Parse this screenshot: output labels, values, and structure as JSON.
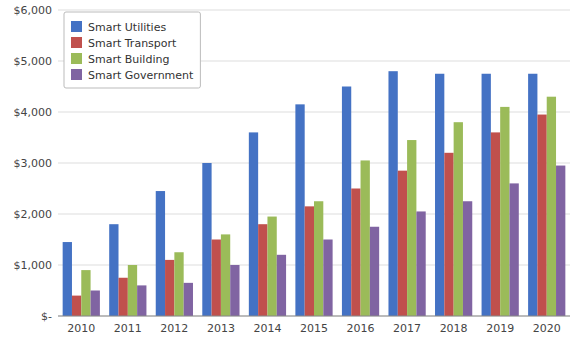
{
  "chart_data": {
    "type": "bar",
    "categories": [
      "2010",
      "2011",
      "2012",
      "2013",
      "2014",
      "2015",
      "2016",
      "2017",
      "2018",
      "2019",
      "2020"
    ],
    "series": [
      {
        "name": "Smart Utilities",
        "color": "#4472C4",
        "values": [
          1450,
          1800,
          2450,
          3000,
          3600,
          4150,
          4500,
          4800,
          4750,
          4750,
          4750
        ]
      },
      {
        "name": "Smart Transport",
        "color": "#C0504D",
        "values": [
          400,
          750,
          1100,
          1500,
          1800,
          2150,
          2500,
          2850,
          3200,
          3600,
          3950
        ]
      },
      {
        "name": "Smart Building",
        "color": "#9BBB59",
        "values": [
          900,
          1000,
          1250,
          1600,
          1950,
          2250,
          3050,
          3450,
          3800,
          4100,
          4300
        ]
      },
      {
        "name": "Smart Government",
        "color": "#8064A2",
        "values": [
          500,
          600,
          650,
          1000,
          1200,
          1500,
          1750,
          2050,
          2250,
          2600,
          2950
        ]
      }
    ],
    "ylim": [
      0,
      6000
    ],
    "yticks": [
      {
        "value": 0,
        "label": "$-"
      },
      {
        "value": 1000,
        "label": "$1,000"
      },
      {
        "value": 2000,
        "label": "$2,000"
      },
      {
        "value": 3000,
        "label": "$3,000"
      },
      {
        "value": 4000,
        "label": "$4,000"
      },
      {
        "value": 5000,
        "label": "$5,000"
      },
      {
        "value": 6000,
        "label": "$6,000"
      }
    ],
    "grid": true,
    "legend": "upper left"
  }
}
